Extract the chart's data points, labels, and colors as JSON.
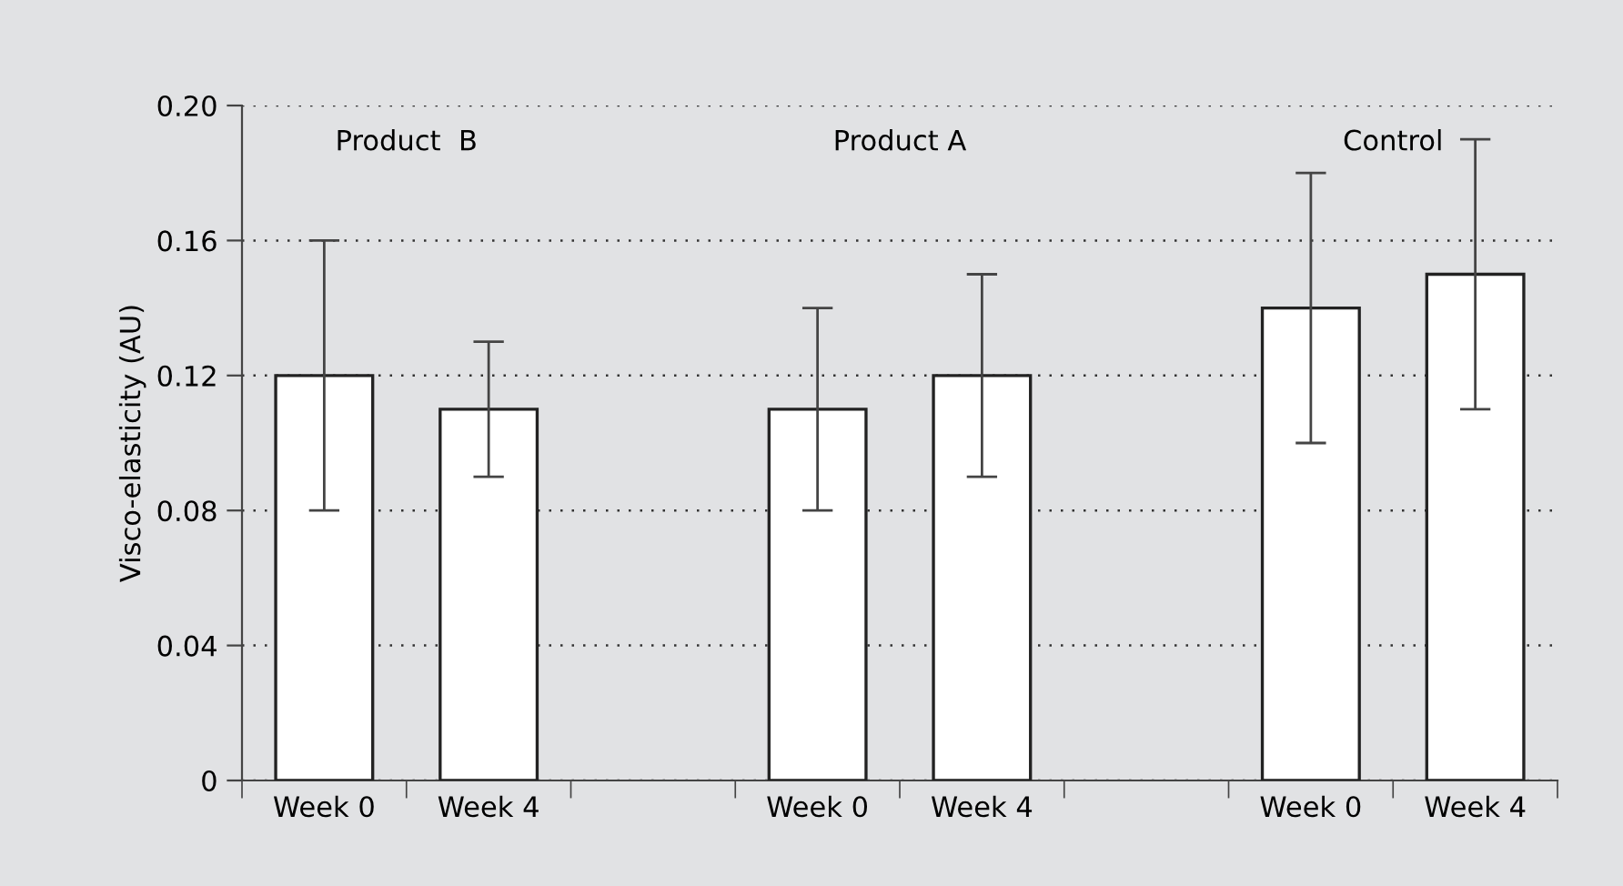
{
  "chart_data": {
    "type": "bar",
    "ylabel": "Visco-elasticity (AU)",
    "categories": [
      "Week 0",
      "Week 4",
      null,
      "Week 0",
      "Week 4",
      null,
      "Week 0",
      "Week 4"
    ],
    "values": [
      0.12,
      0.11,
      null,
      0.11,
      0.12,
      null,
      0.14,
      0.15
    ],
    "errors": [
      0.04,
      0.02,
      null,
      0.03,
      0.03,
      null,
      0.04,
      0.04
    ],
    "color": "#ffffff",
    "ylim": [
      0,
      0.2
    ],
    "yticks": [
      {
        "value": 0,
        "label": "0"
      },
      0.04,
      0.08,
      0.12,
      0.16,
      {
        "value": 0.2,
        "label": "0.20"
      }
    ],
    "grid": "y",
    "annotations": [
      "Product  B",
      "Product A",
      "Control"
    ]
  }
}
